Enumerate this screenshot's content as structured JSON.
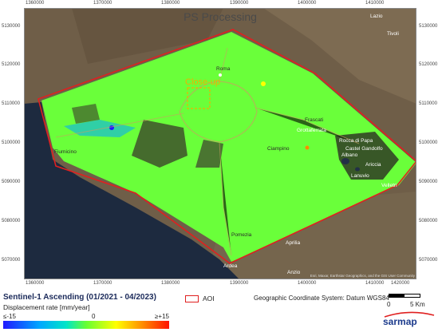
{
  "map": {
    "title": "PS Processing",
    "close_up_label": "Close-up",
    "x_ticks": [
      "1360000",
      "1370000",
      "1380000",
      "1390000",
      "1400000",
      "1410000",
      "1420000"
    ],
    "y_ticks": [
      "5130000",
      "5120000",
      "5110000",
      "5100000",
      "5090000",
      "5080000",
      "5070000"
    ],
    "places": {
      "roma": "Roma",
      "fiumicino": "Fiumicino",
      "frascati": "Frascati",
      "grottaferrata": "Grottaferrata",
      "rocca_di_papa": "Rocca di Papa",
      "castel_gandolfo": "Castel Gandolfo",
      "albano": "Albano",
      "ariccia": "Ariccia",
      "lanuvio": "Lanuvio",
      "velletri": "Velletri",
      "ciampino": "Ciampino",
      "pomezia": "Pomezia",
      "aprilia": "Aprilia",
      "ardea": "Ardea",
      "lazio": "Lazio",
      "tivoli": "Tivoli",
      "anzio": "Anzio"
    },
    "attribution": "Esri, Maxar, Earthstar Geographics, and the GIS User Community",
    "colors": {
      "sea": "#1d2a3f",
      "terrain": "#6f5e48",
      "ps_low": "#2018ff",
      "ps_stable": "#6aff3a",
      "ps_high": "#ff1200",
      "aoi": "#e02020"
    }
  },
  "legend": {
    "title": "Sentinel-1 Ascending (01/2021 - 04/2023)",
    "subtitle": "Displacement rate [mm/year]",
    "min_label": "≤-15",
    "mid_label": "0",
    "max_label": "≥+15",
    "aoi_label": "AOI",
    "crs_label": "Geographic Coordinate System: Datum WGS84",
    "scale_zero": "0",
    "scale_five": "5 Km",
    "logo": "sarmap"
  }
}
